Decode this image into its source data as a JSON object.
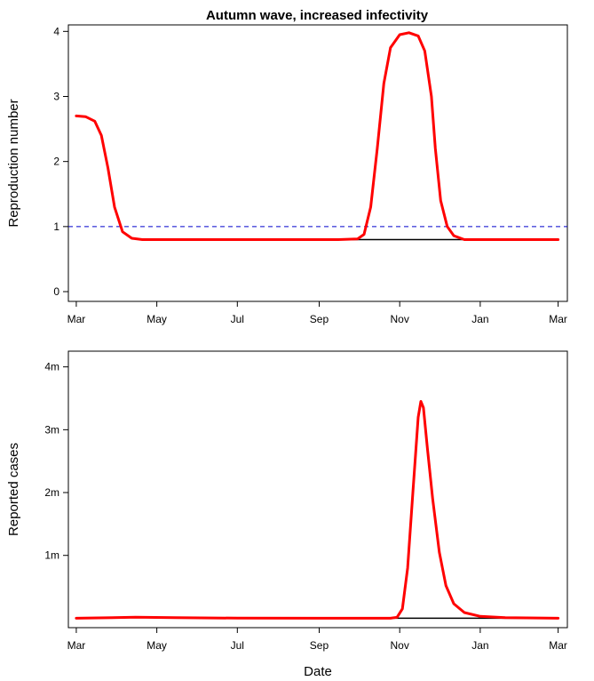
{
  "chart_data": [
    {
      "type": "line",
      "title": "Autumn wave, increased infectivity",
      "xlabel": "",
      "ylabel": "Reproduction number",
      "x_tick_labels": [
        "Mar",
        "May",
        "Jul",
        "Sep",
        "Nov",
        "Jan",
        "Mar"
      ],
      "x_ticks": [
        "2020-03-01",
        "2020-05-01",
        "2020-07-01",
        "2020-09-01",
        "2020-11-01",
        "2021-01-01",
        "2021-03-01"
      ],
      "xlim": [
        "2020-02-24",
        "2021-03-08"
      ],
      "y_ticks": [
        0,
        1,
        2,
        3,
        4
      ],
      "y_tick_labels": [
        "0",
        "1",
        "2",
        "3",
        "4"
      ],
      "ylim": [
        -0.15,
        4.1
      ],
      "reference_line": {
        "y": 1,
        "style": "dashed",
        "color": "#0000cc"
      },
      "series": [
        {
          "color": "#000000",
          "points": [
            [
              "2020-03-01",
              2.7
            ],
            [
              "2020-03-08",
              2.69
            ],
            [
              "2020-03-15",
              2.62
            ],
            [
              "2020-03-20",
              2.4
            ],
            [
              "2020-03-25",
              1.9
            ],
            [
              "2020-03-30",
              1.3
            ],
            [
              "2020-04-05",
              0.92
            ],
            [
              "2020-04-12",
              0.82
            ],
            [
              "2020-04-20",
              0.8
            ],
            [
              "2020-06-01",
              0.8
            ],
            [
              "2020-08-01",
              0.8
            ],
            [
              "2020-10-01",
              0.8
            ],
            [
              "2020-12-01",
              0.8
            ],
            [
              "2021-01-01",
              0.8
            ],
            [
              "2021-03-01",
              0.8
            ]
          ]
        },
        {
          "color": "#ff0000",
          "points": [
            [
              "2020-03-01",
              2.7
            ],
            [
              "2020-03-08",
              2.69
            ],
            [
              "2020-03-15",
              2.62
            ],
            [
              "2020-03-20",
              2.4
            ],
            [
              "2020-03-25",
              1.9
            ],
            [
              "2020-03-30",
              1.3
            ],
            [
              "2020-04-05",
              0.92
            ],
            [
              "2020-04-12",
              0.82
            ],
            [
              "2020-04-20",
              0.8
            ],
            [
              "2020-06-01",
              0.8
            ],
            [
              "2020-08-01",
              0.8
            ],
            [
              "2020-09-15",
              0.8
            ],
            [
              "2020-09-30",
              0.81
            ],
            [
              "2020-10-05",
              0.88
            ],
            [
              "2020-10-10",
              1.3
            ],
            [
              "2020-10-15",
              2.2
            ],
            [
              "2020-10-20",
              3.2
            ],
            [
              "2020-10-25",
              3.75
            ],
            [
              "2020-11-01",
              3.95
            ],
            [
              "2020-11-08",
              3.98
            ],
            [
              "2020-11-15",
              3.93
            ],
            [
              "2020-11-20",
              3.7
            ],
            [
              "2020-11-25",
              3.0
            ],
            [
              "2020-11-28",
              2.2
            ],
            [
              "2020-12-02",
              1.4
            ],
            [
              "2020-12-07",
              1.0
            ],
            [
              "2020-12-12",
              0.86
            ],
            [
              "2020-12-20",
              0.8
            ],
            [
              "2021-01-15",
              0.8
            ],
            [
              "2021-03-01",
              0.8
            ]
          ]
        }
      ]
    },
    {
      "type": "line",
      "title": "",
      "xlabel": "Date",
      "ylabel": "Reported cases",
      "x_tick_labels": [
        "Mar",
        "May",
        "Jul",
        "Sep",
        "Nov",
        "Jan",
        "Mar"
      ],
      "x_ticks": [
        "2020-03-01",
        "2020-05-01",
        "2020-07-01",
        "2020-09-01",
        "2020-11-01",
        "2021-01-01",
        "2021-03-01"
      ],
      "xlim": [
        "2020-02-24",
        "2021-03-08"
      ],
      "y_ticks": [
        1000000,
        2000000,
        3000000,
        4000000
      ],
      "y_tick_labels": [
        "1m",
        "2m",
        "3m",
        "4m"
      ],
      "ylim": [
        -150000,
        4250000
      ],
      "series": [
        {
          "color": "#000000",
          "points": [
            [
              "2020-03-01",
              0
            ],
            [
              "2020-04-15",
              15000
            ],
            [
              "2020-05-15",
              10000
            ],
            [
              "2020-07-01",
              2000
            ],
            [
              "2020-09-01",
              0
            ],
            [
              "2020-11-01",
              0
            ],
            [
              "2021-01-01",
              0
            ],
            [
              "2021-03-01",
              0
            ]
          ]
        },
        {
          "color": "#ff0000",
          "points": [
            [
              "2020-03-01",
              0
            ],
            [
              "2020-04-15",
              15000
            ],
            [
              "2020-05-15",
              10000
            ],
            [
              "2020-07-01",
              2000
            ],
            [
              "2020-09-01",
              0
            ],
            [
              "2020-10-25",
              0
            ],
            [
              "2020-10-30",
              15000
            ],
            [
              "2020-11-03",
              150000
            ],
            [
              "2020-11-07",
              800000
            ],
            [
              "2020-11-11",
              2000000
            ],
            [
              "2020-11-15",
              3200000
            ],
            [
              "2020-11-17",
              3450000
            ],
            [
              "2020-11-19",
              3350000
            ],
            [
              "2020-11-22",
              2700000
            ],
            [
              "2020-11-26",
              1900000
            ],
            [
              "2020-12-01",
              1050000
            ],
            [
              "2020-12-06",
              520000
            ],
            [
              "2020-12-12",
              230000
            ],
            [
              "2020-12-20",
              90000
            ],
            [
              "2021-01-01",
              30000
            ],
            [
              "2021-01-20",
              8000
            ],
            [
              "2021-03-01",
              0
            ]
          ]
        }
      ]
    }
  ]
}
